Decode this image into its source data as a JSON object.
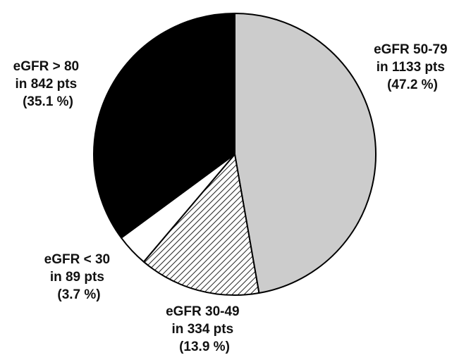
{
  "chart_data": {
    "type": "pie",
    "slices": [
      {
        "category": "eGFR 50-79",
        "count": 1133,
        "percent": 47.2,
        "fill": "#cccccc",
        "pattern": "solid",
        "label_lines": [
          "eGFR 50-79",
          "in 1133 pts",
          "(47.2 %)"
        ]
      },
      {
        "category": "eGFR 30-49",
        "count": 334,
        "percent": 13.9,
        "fill": "#ffffff",
        "pattern": "diagonal-hatch",
        "label_lines": [
          "eGFR 30-49",
          "in 334 pts",
          "(13.9 %)"
        ]
      },
      {
        "category": "eGFR < 30",
        "count": 89,
        "percent": 3.7,
        "fill": "#ffffff",
        "pattern": "solid",
        "label_lines": [
          "eGFR < 30",
          "in 89 pts",
          "(3.7 %)"
        ]
      },
      {
        "category": "eGFR > 80",
        "count": 842,
        "percent": 35.1,
        "fill": "#000000",
        "pattern": "solid",
        "label_lines": [
          "eGFR > 80",
          "in 842 pts",
          "(35.1 %)"
        ]
      }
    ],
    "start": "12 o'clock",
    "direction": "clockwise",
    "outline_color": "#000000",
    "legend": "none"
  }
}
